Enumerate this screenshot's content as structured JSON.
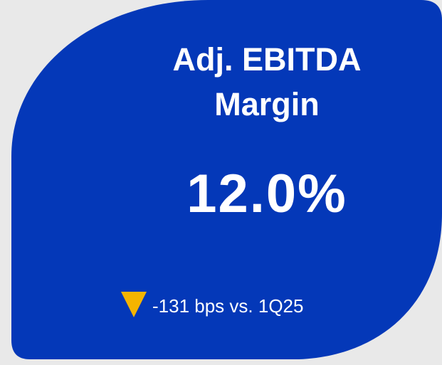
{
  "card": {
    "title": "Adj. EBITDA Margin",
    "value": "12.0%",
    "change": "-131 bps vs. 1Q25"
  }
}
